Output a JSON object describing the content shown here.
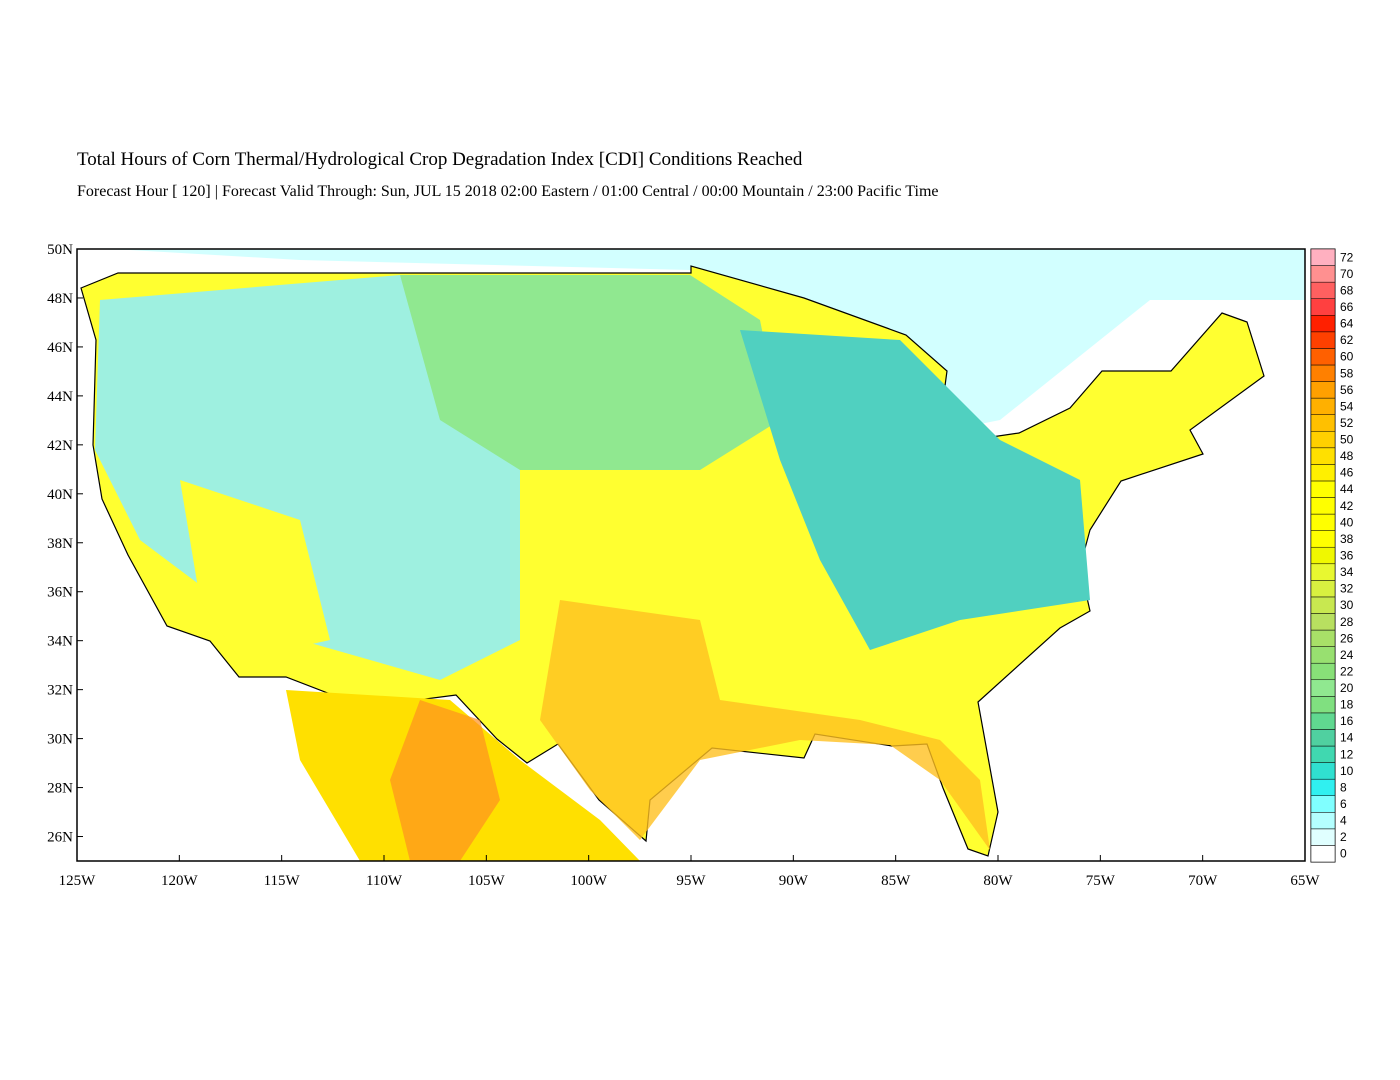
{
  "header": {
    "title": "Total Hours of Corn Thermal/Hydrological Crop Degradation Index [CDI] Conditions Reached",
    "subtitle": "Forecast Hour [ 120] | Forecast Valid Through: Sun, JUL 15 2018 02:00 Eastern / 01:00 Central / 00:00 Mountain / 23:00 Pacific Time"
  },
  "map": {
    "xlim": [
      -125,
      -65
    ],
    "ylim": [
      25,
      50
    ],
    "xticks": [
      {
        "value": -125,
        "label": "125W"
      },
      {
        "value": -120,
        "label": "120W"
      },
      {
        "value": -115,
        "label": "115W"
      },
      {
        "value": -110,
        "label": "110W"
      },
      {
        "value": -105,
        "label": "105W"
      },
      {
        "value": -100,
        "label": "100W"
      },
      {
        "value": -95,
        "label": "95W"
      },
      {
        "value": -90,
        "label": "90W"
      },
      {
        "value": -85,
        "label": "85W"
      },
      {
        "value": -80,
        "label": "80W"
      },
      {
        "value": -75,
        "label": "75W"
      },
      {
        "value": -70,
        "label": "70W"
      },
      {
        "value": -65,
        "label": "65W"
      }
    ],
    "yticks": [
      {
        "value": 50,
        "label": "50N"
      },
      {
        "value": 48,
        "label": "48N"
      },
      {
        "value": 46,
        "label": "46N"
      },
      {
        "value": 44,
        "label": "44N"
      },
      {
        "value": 42,
        "label": "42N"
      },
      {
        "value": 40,
        "label": "40N"
      },
      {
        "value": 38,
        "label": "38N"
      },
      {
        "value": 36,
        "label": "36N"
      },
      {
        "value": 34,
        "label": "34N"
      },
      {
        "value": 32,
        "label": "32N"
      },
      {
        "value": 30,
        "label": "30N"
      },
      {
        "value": 28,
        "label": "28N"
      },
      {
        "value": 26,
        "label": "26N"
      }
    ],
    "colorbar": {
      "values": [
        0,
        2,
        4,
        6,
        8,
        10,
        12,
        14,
        16,
        18,
        20,
        22,
        24,
        26,
        28,
        30,
        32,
        34,
        36,
        38,
        40,
        42,
        44,
        46,
        48,
        50,
        52,
        54,
        56,
        58,
        60,
        62,
        64,
        66,
        68,
        70,
        72
      ],
      "colors": [
        "#ffffff",
        "#e0ffff",
        "#b4ffff",
        "#80ffff",
        "#30f0f0",
        "#30e0d0",
        "#40d8b0",
        "#50d0a0",
        "#60d890",
        "#80e080",
        "#90e890",
        "#88e078",
        "#98e070",
        "#a8e068",
        "#b8e060",
        "#c8e850",
        "#d8f040",
        "#e8f830",
        "#f0f800",
        "#ffff00",
        "#ffff00",
        "#ffff00",
        "#ffff00",
        "#fff000",
        "#ffe000",
        "#ffd000",
        "#ffc000",
        "#ffb000",
        "#ffa000",
        "#ff8000",
        "#ff6000",
        "#ff4000",
        "#ff2000",
        "#ff4040",
        "#ff6060",
        "#ff9090",
        "#ffb0c0"
      ]
    }
  }
}
